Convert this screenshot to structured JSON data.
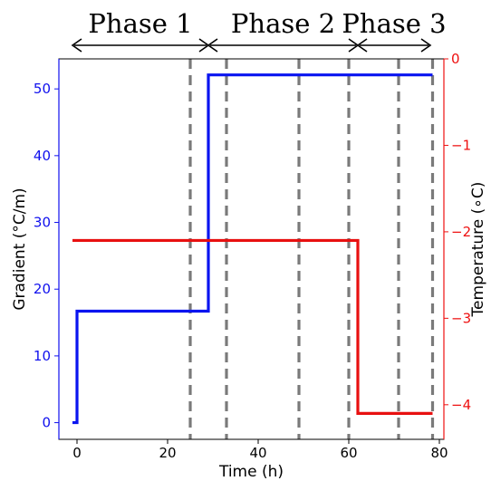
{
  "chart_data": {
    "type": "line",
    "phases": [
      {
        "label": "Phase 1",
        "start": -1,
        "end": 29
      },
      {
        "label": "Phase 2",
        "start": 29,
        "end": 62
      },
      {
        "label": "Phase 3",
        "start": 62,
        "end": 78
      }
    ],
    "xlabel": "Time (h)",
    "ylabel_left": "Gradient (°C/m)",
    "ylabel_right": "Temperature (∘C)",
    "xlim": [
      -4,
      81
    ],
    "ylim_left": [
      -2.5,
      54.5
    ],
    "ylim_right": [
      -4.4,
      0
    ],
    "x_ticks": [
      0,
      20,
      40,
      60,
      80
    ],
    "y_left_ticks": [
      0,
      10,
      20,
      30,
      40,
      50
    ],
    "y_right_ticks": [
      0,
      -1,
      -2,
      -3,
      -4
    ],
    "y_right_tick_labels": [
      "0",
      "−1",
      "−2",
      "−3",
      "−4"
    ],
    "vlines_x": [
      25,
      33,
      49,
      60,
      71,
      78.5
    ],
    "series": [
      {
        "axis": "left",
        "color": "#0a14f0",
        "points": [
          [
            -1,
            0
          ],
          [
            0,
            0
          ],
          [
            0,
            16.7
          ],
          [
            29,
            16.7
          ],
          [
            29,
            52.1
          ],
          [
            78.5,
            52.1
          ]
        ]
      },
      {
        "axis": "right",
        "color": "#e81010",
        "points": [
          [
            -1,
            -2.1
          ],
          [
            62,
            -2.1
          ],
          [
            62,
            -4.1
          ],
          [
            78.5,
            -4.1
          ]
        ]
      }
    ]
  }
}
